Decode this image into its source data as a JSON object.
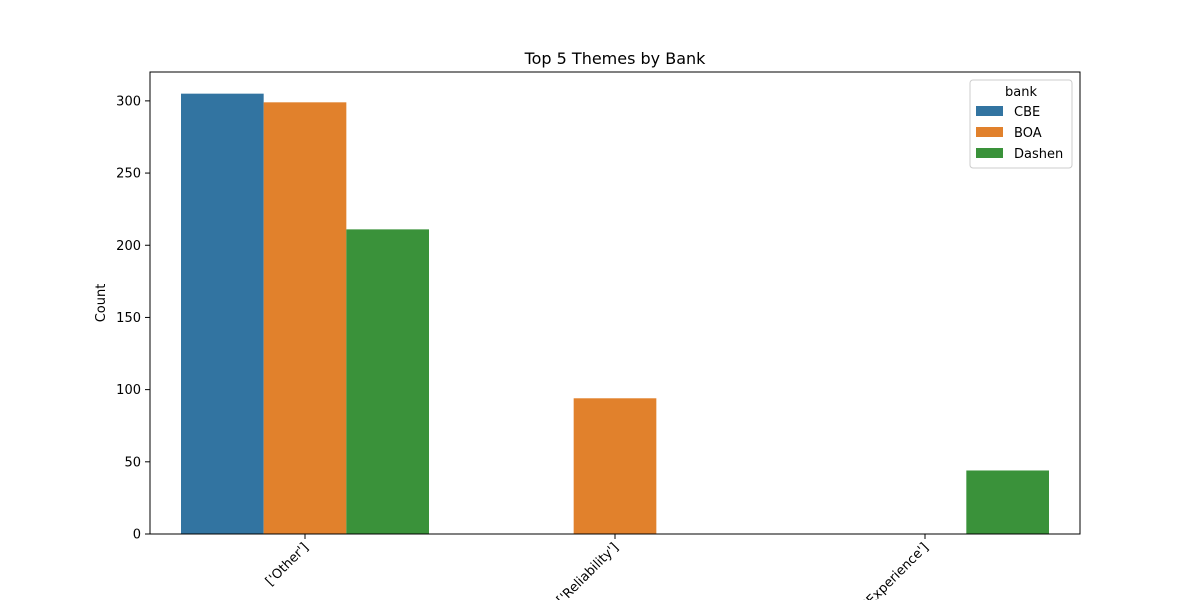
{
  "chart_data": {
    "type": "bar",
    "title": "Top 5 Themes by Bank",
    "xlabel": "",
    "ylabel": "Count",
    "categories": [
      "['Other']",
      "['Reliability']",
      "['Experience']"
    ],
    "series": [
      {
        "name": "CBE",
        "color": "#3274a1",
        "values": [
          305,
          null,
          null
        ]
      },
      {
        "name": "BOA",
        "color": "#e1812c",
        "values": [
          299,
          94,
          null
        ]
      },
      {
        "name": "Dashen",
        "color": "#3a923a",
        "values": [
          211,
          null,
          44
        ]
      }
    ],
    "ylim": [
      0,
      320
    ],
    "yticks": [
      0,
      50,
      100,
      150,
      200,
      250,
      300
    ],
    "legend": {
      "title": "bank",
      "position": "top-right"
    },
    "grid": false
  }
}
